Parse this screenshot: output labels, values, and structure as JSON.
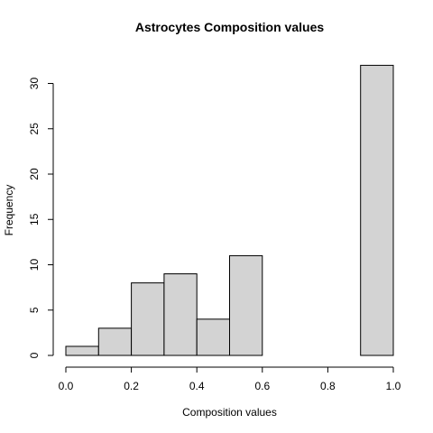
{
  "chart_data": {
    "type": "bar",
    "title": "Astrocytes Composition values",
    "xlabel": "Composition values",
    "ylabel": "Frequency",
    "bins": [
      {
        "start": 0.0,
        "end": 0.1,
        "count": 1
      },
      {
        "start": 0.1,
        "end": 0.2,
        "count": 3
      },
      {
        "start": 0.2,
        "end": 0.3,
        "count": 8
      },
      {
        "start": 0.3,
        "end": 0.4,
        "count": 9
      },
      {
        "start": 0.4,
        "end": 0.5,
        "count": 4
      },
      {
        "start": 0.5,
        "end": 0.6,
        "count": 11
      },
      {
        "start": 0.6,
        "end": 0.7,
        "count": 0
      },
      {
        "start": 0.7,
        "end": 0.8,
        "count": 0
      },
      {
        "start": 0.8,
        "end": 0.9,
        "count": 0
      },
      {
        "start": 0.9,
        "end": 1.0,
        "count": 32
      }
    ],
    "xlim": [
      0,
      1
    ],
    "ylim": [
      0,
      32
    ],
    "x_ticks": [
      {
        "value": 0.0,
        "label": "0.0"
      },
      {
        "value": 0.2,
        "label": "0.2"
      },
      {
        "value": 0.4,
        "label": "0.4"
      },
      {
        "value": 0.6,
        "label": "0.6"
      },
      {
        "value": 0.8,
        "label": "0.8"
      },
      {
        "value": 1.0,
        "label": "1.0"
      }
    ],
    "y_ticks": [
      {
        "value": 0,
        "label": "0"
      },
      {
        "value": 5,
        "label": "5"
      },
      {
        "value": 10,
        "label": "10"
      },
      {
        "value": 15,
        "label": "15"
      },
      {
        "value": 20,
        "label": "20"
      },
      {
        "value": 25,
        "label": "25"
      },
      {
        "value": 30,
        "label": "30"
      }
    ],
    "bar_color": "#d3d3d3",
    "grid": false,
    "legend": "none"
  }
}
